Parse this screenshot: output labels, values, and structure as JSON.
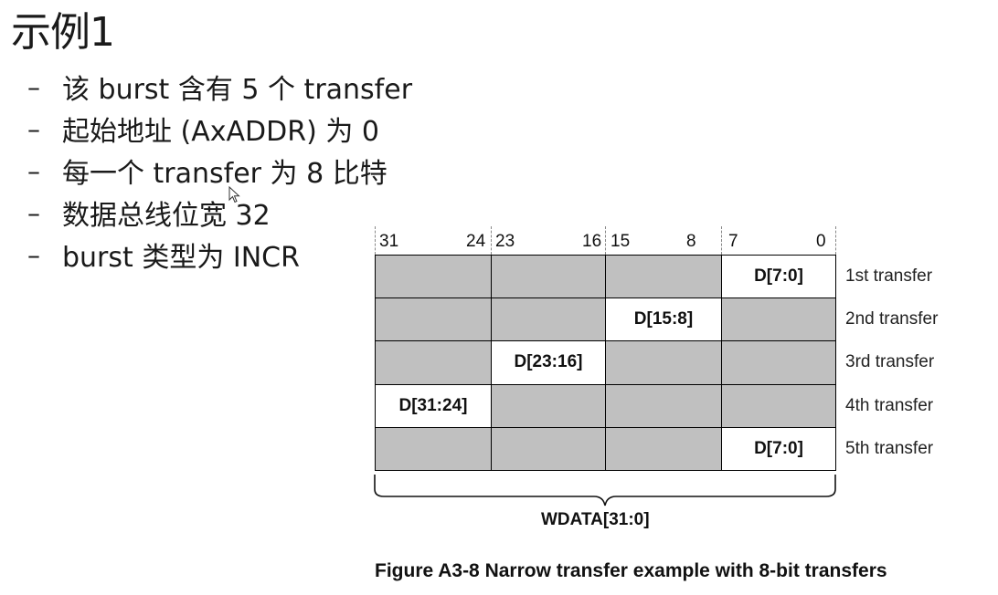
{
  "slide": {
    "title": "示例1",
    "bullets": [
      "该 burst 含有 5 个 transfer",
      "起始地址 (AxADDR) 为 0",
      "每一个 transfer 为 8 比特",
      "数据总线位宽 32",
      "burst 类型为 INCR"
    ],
    "bullet_marker": "–"
  },
  "diagram": {
    "bit_labels": [
      "31",
      "24",
      "23",
      "16",
      "15",
      "8",
      "7",
      "0"
    ],
    "lanes": [
      "[31:24]",
      "[23:16]",
      "[15:8]",
      "[7:0]"
    ],
    "transfers": [
      {
        "label": "1st transfer",
        "active_lane": 3,
        "data": "D[7:0]"
      },
      {
        "label": "2nd transfer",
        "active_lane": 2,
        "data": "D[15:8]"
      },
      {
        "label": "3rd transfer",
        "active_lane": 1,
        "data": "D[23:16]"
      },
      {
        "label": "4th transfer",
        "active_lane": 0,
        "data": "D[31:24]"
      },
      {
        "label": "5th transfer",
        "active_lane": 3,
        "data": "D[7:0]"
      }
    ],
    "bus_label": "WDATA[31:0]",
    "caption": "Figure A3-8 Narrow transfer example with 8-bit transfers",
    "colors": {
      "inactive": "#c0c0c0",
      "active": "#ffffff",
      "border": "#000000"
    }
  }
}
